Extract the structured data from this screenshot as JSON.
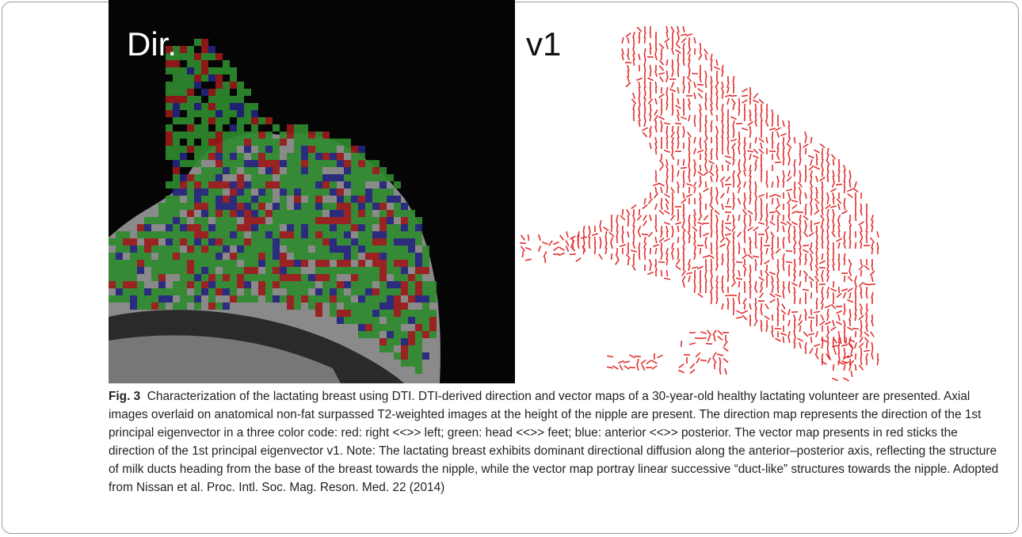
{
  "figure": {
    "panels": [
      {
        "label": "Dir."
      },
      {
        "label": "v1"
      }
    ],
    "caption": {
      "label": "Fig. 3",
      "text": "Characterization of the lactating breast using DTI. DTI-derived direction and vector maps of a 30-year-old healthy lactating volunteer are presented. Axial images overlaid on anatomical non-fat surpassed T2-weighted images at the height of the nipple are present. The direction map represents the direction of the 1st principal eigenvector in a three color code: red: right <<>> left; green: head <<>> feet; blue: anterior <<>> posterior. The vector map presents in red sticks the direction of the 1st principal eigenvector v1. Note: The lactating breast exhibits dominant directional diffusion along the anterior–posterior axis, reflecting the structure of milk ducts heading from the base of the breast towards the nipple, while the vector map portray linear successive “duct-like” structures towards the nipple. Adopted from Nissan et al. Proc. Intl. Soc. Mag. Reson. Med. 22 (2014)"
    }
  }
}
